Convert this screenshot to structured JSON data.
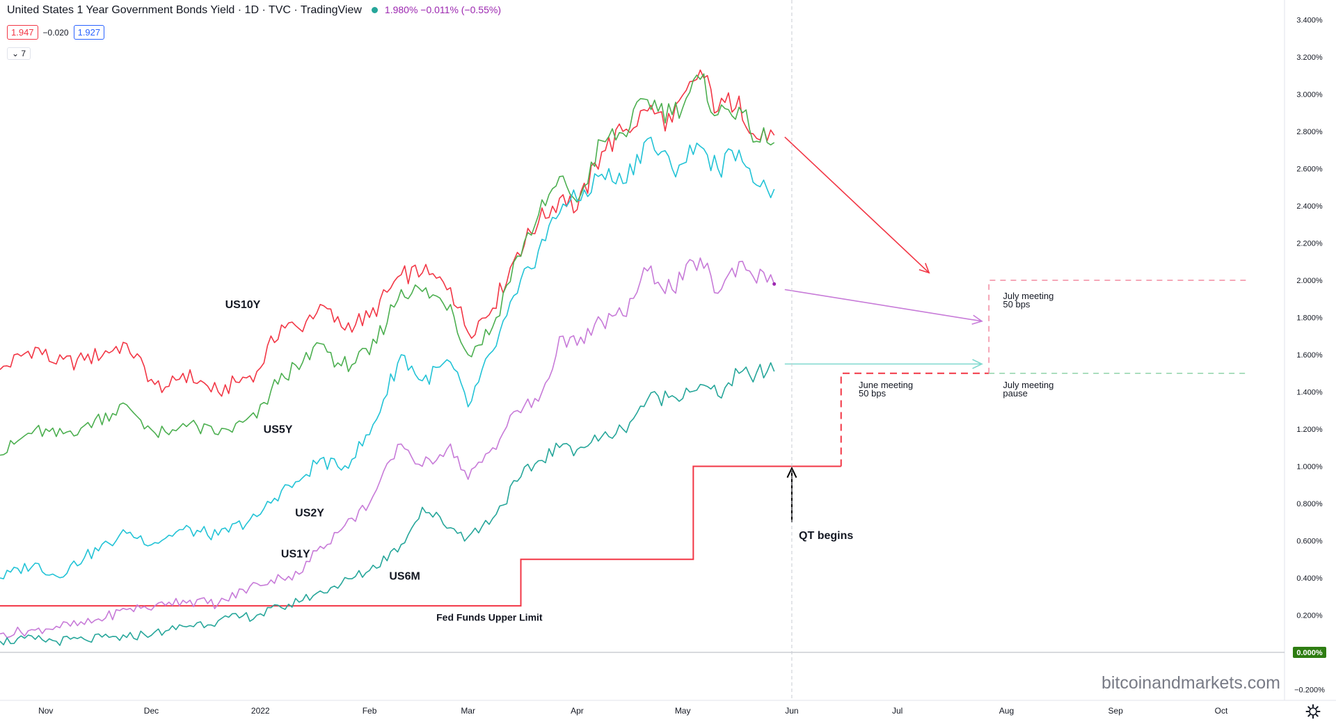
{
  "header": {
    "title": "United States 1 Year Government Bonds Yield · 1D · TVC · TradingView",
    "quote": "1.980% −0.011% (−0.55%)",
    "bid": "1.947",
    "spread": "−0.020",
    "ask": "1.927",
    "indicators_toggle": "7"
  },
  "watermark": "bitcoinandmarkets.com",
  "colors": {
    "US10Y": "#f23645",
    "US5Y": "#4caf50",
    "US2Y": "#22c3d6",
    "US1Y": "#c77ad8",
    "US6M": "#26a69a",
    "fed": "#f23645",
    "zero_badge": "#2e7d12"
  },
  "icons": {
    "settings": "gear-icon",
    "collapse": "chevron-down-icon"
  },
  "chart_data": {
    "type": "line",
    "x_axis_labels": [
      "Nov",
      "Dec",
      "2022",
      "Feb",
      "Mar",
      "Apr",
      "May",
      "Jun",
      "Jul",
      "Aug",
      "Sep",
      "Oct"
    ],
    "y_axis_labels": [
      "3.400%",
      "3.200%",
      "3.000%",
      "2.800%",
      "2.600%",
      "2.400%",
      "2.200%",
      "2.000%",
      "1.800%",
      "1.600%",
      "1.400%",
      "1.200%",
      "1.000%",
      "0.800%",
      "0.600%",
      "0.400%",
      "0.200%",
      "0.000%",
      "−0.200%"
    ],
    "ylim": [
      -0.2,
      3.4
    ],
    "y_unit": "%",
    "x_range": [
      "2021-10-19",
      "2022-10-19"
    ],
    "grid": false,
    "series": [
      {
        "name": "US10Y",
        "label_date": "2021-12-27",
        "label_y": 1.85,
        "points": [
          [
            "2021-10-19",
            1.52
          ],
          [
            "2021-10-29",
            1.64
          ],
          [
            "2021-11-04",
            1.55
          ],
          [
            "2021-11-12",
            1.57
          ],
          [
            "2021-11-24",
            1.66
          ],
          [
            "2021-12-02",
            1.44
          ],
          [
            "2021-12-06",
            1.43
          ],
          [
            "2021-12-10",
            1.5
          ],
          [
            "2021-12-20",
            1.4
          ],
          [
            "2021-12-31",
            1.51
          ],
          [
            "2022-01-07",
            1.76
          ],
          [
            "2022-01-12",
            1.74
          ],
          [
            "2022-01-18",
            1.87
          ],
          [
            "2022-01-24",
            1.75
          ],
          [
            "2022-02-01",
            1.8
          ],
          [
            "2022-02-10",
            2.03
          ],
          [
            "2022-02-16",
            2.04
          ],
          [
            "2022-02-24",
            1.96
          ],
          [
            "2022-03-01",
            1.72
          ],
          [
            "2022-03-08",
            1.85
          ],
          [
            "2022-03-15",
            2.15
          ],
          [
            "2022-03-21",
            2.31
          ],
          [
            "2022-03-28",
            2.46
          ],
          [
            "2022-04-01",
            2.38
          ],
          [
            "2022-04-08",
            2.69
          ],
          [
            "2022-04-14",
            2.8
          ],
          [
            "2022-04-21",
            2.91
          ],
          [
            "2022-04-28",
            2.85
          ],
          [
            "2022-05-06",
            3.13
          ],
          [
            "2022-05-11",
            2.91
          ],
          [
            "2022-05-17",
            2.99
          ],
          [
            "2022-05-20",
            2.79
          ],
          [
            "2022-05-25",
            2.75
          ],
          [
            "2022-05-27",
            2.78
          ]
        ]
      },
      {
        "name": "US5Y",
        "label_date": "2022-01-06",
        "label_y": 1.18,
        "points": [
          [
            "2021-10-19",
            1.06
          ],
          [
            "2021-10-29",
            1.2
          ],
          [
            "2021-11-04",
            1.16
          ],
          [
            "2021-11-12",
            1.22
          ],
          [
            "2021-11-24",
            1.33
          ],
          [
            "2021-12-02",
            1.18
          ],
          [
            "2021-12-06",
            1.17
          ],
          [
            "2021-12-10",
            1.23
          ],
          [
            "2021-12-20",
            1.17
          ],
          [
            "2021-12-31",
            1.26
          ],
          [
            "2022-01-07",
            1.5
          ],
          [
            "2022-01-12",
            1.52
          ],
          [
            "2022-01-18",
            1.66
          ],
          [
            "2022-01-24",
            1.54
          ],
          [
            "2022-02-01",
            1.6
          ],
          [
            "2022-02-10",
            1.95
          ],
          [
            "2022-02-16",
            1.94
          ],
          [
            "2022-02-24",
            1.87
          ],
          [
            "2022-03-01",
            1.6
          ],
          [
            "2022-03-08",
            1.75
          ],
          [
            "2022-03-15",
            2.13
          ],
          [
            "2022-03-21",
            2.35
          ],
          [
            "2022-03-28",
            2.56
          ],
          [
            "2022-04-01",
            2.42
          ],
          [
            "2022-04-08",
            2.75
          ],
          [
            "2022-04-14",
            2.79
          ],
          [
            "2022-04-21",
            2.97
          ],
          [
            "2022-04-28",
            2.89
          ],
          [
            "2022-05-06",
            3.08
          ],
          [
            "2022-05-11",
            2.89
          ],
          [
            "2022-05-17",
            2.93
          ],
          [
            "2022-05-20",
            2.81
          ],
          [
            "2022-05-25",
            2.74
          ],
          [
            "2022-05-27",
            2.74
          ]
        ]
      },
      {
        "name": "US2Y",
        "label_date": "2022-01-15",
        "label_y": 0.73,
        "points": [
          [
            "2021-10-19",
            0.4
          ],
          [
            "2021-10-29",
            0.48
          ],
          [
            "2021-11-04",
            0.41
          ],
          [
            "2021-11-12",
            0.51
          ],
          [
            "2021-11-24",
            0.64
          ],
          [
            "2021-12-02",
            0.59
          ],
          [
            "2021-12-06",
            0.63
          ],
          [
            "2021-12-10",
            0.66
          ],
          [
            "2021-12-20",
            0.63
          ],
          [
            "2021-12-31",
            0.73
          ],
          [
            "2022-01-07",
            0.87
          ],
          [
            "2022-01-12",
            0.92
          ],
          [
            "2022-01-18",
            1.04
          ],
          [
            "2022-01-24",
            0.98
          ],
          [
            "2022-02-01",
            1.17
          ],
          [
            "2022-02-10",
            1.6
          ],
          [
            "2022-02-16",
            1.46
          ],
          [
            "2022-02-24",
            1.56
          ],
          [
            "2022-03-01",
            1.32
          ],
          [
            "2022-03-08",
            1.62
          ],
          [
            "2022-03-15",
            1.93
          ],
          [
            "2022-03-21",
            2.16
          ],
          [
            "2022-03-28",
            2.41
          ],
          [
            "2022-04-01",
            2.43
          ],
          [
            "2022-04-08",
            2.57
          ],
          [
            "2022-04-14",
            2.52
          ],
          [
            "2022-04-21",
            2.76
          ],
          [
            "2022-04-28",
            2.6
          ],
          [
            "2022-05-06",
            2.72
          ],
          [
            "2022-05-11",
            2.6
          ],
          [
            "2022-05-17",
            2.7
          ],
          [
            "2022-05-20",
            2.6
          ],
          [
            "2022-05-25",
            2.49
          ],
          [
            "2022-05-27",
            2.49
          ]
        ]
      },
      {
        "name": "US1Y",
        "label_date": "2022-01-11",
        "label_y": 0.51,
        "points": [
          [
            "2021-10-19",
            0.1
          ],
          [
            "2021-10-29",
            0.12
          ],
          [
            "2021-11-04",
            0.14
          ],
          [
            "2021-11-12",
            0.15
          ],
          [
            "2021-11-24",
            0.23
          ],
          [
            "2021-12-02",
            0.25
          ],
          [
            "2021-12-06",
            0.27
          ],
          [
            "2021-12-10",
            0.28
          ],
          [
            "2021-12-20",
            0.26
          ],
          [
            "2021-12-31",
            0.37
          ],
          [
            "2022-01-07",
            0.4
          ],
          [
            "2022-01-12",
            0.42
          ],
          [
            "2022-01-18",
            0.57
          ],
          [
            "2022-01-24",
            0.66
          ],
          [
            "2022-02-01",
            0.8
          ],
          [
            "2022-02-10",
            1.12
          ],
          [
            "2022-02-16",
            1.0
          ],
          [
            "2022-02-24",
            1.12
          ],
          [
            "2022-03-01",
            0.93
          ],
          [
            "2022-03-08",
            1.1
          ],
          [
            "2022-03-15",
            1.3
          ],
          [
            "2022-03-21",
            1.35
          ],
          [
            "2022-03-28",
            1.7
          ],
          [
            "2022-04-01",
            1.65
          ],
          [
            "2022-04-08",
            1.78
          ],
          [
            "2022-04-14",
            1.81
          ],
          [
            "2022-04-21",
            2.05
          ],
          [
            "2022-04-28",
            1.95
          ],
          [
            "2022-05-06",
            2.12
          ],
          [
            "2022-05-11",
            1.93
          ],
          [
            "2022-05-17",
            2.1
          ],
          [
            "2022-05-20",
            2.05
          ],
          [
            "2022-05-25",
            1.99
          ],
          [
            "2022-05-27",
            1.98
          ]
        ]
      },
      {
        "name": "US6M",
        "label_date": "2022-02-11",
        "label_y": 0.39,
        "points": [
          [
            "2021-10-19",
            0.06
          ],
          [
            "2021-10-29",
            0.07
          ],
          [
            "2021-11-04",
            0.06
          ],
          [
            "2021-11-12",
            0.07
          ],
          [
            "2021-11-24",
            0.08
          ],
          [
            "2021-12-02",
            0.11
          ],
          [
            "2021-12-06",
            0.12
          ],
          [
            "2021-12-10",
            0.14
          ],
          [
            "2021-12-20",
            0.17
          ],
          [
            "2021-12-31",
            0.2
          ],
          [
            "2022-01-07",
            0.24
          ],
          [
            "2022-01-12",
            0.27
          ],
          [
            "2022-01-18",
            0.33
          ],
          [
            "2022-01-24",
            0.37
          ],
          [
            "2022-02-01",
            0.44
          ],
          [
            "2022-02-10",
            0.58
          ],
          [
            "2022-02-16",
            0.78
          ],
          [
            "2022-02-24",
            0.67
          ],
          [
            "2022-03-01",
            0.62
          ],
          [
            "2022-03-08",
            0.72
          ],
          [
            "2022-03-15",
            0.92
          ],
          [
            "2022-03-21",
            1.03
          ],
          [
            "2022-03-28",
            1.12
          ],
          [
            "2022-04-01",
            1.09
          ],
          [
            "2022-04-08",
            1.16
          ],
          [
            "2022-04-14",
            1.2
          ],
          [
            "2022-04-21",
            1.36
          ],
          [
            "2022-04-28",
            1.38
          ],
          [
            "2022-05-06",
            1.44
          ],
          [
            "2022-05-11",
            1.38
          ],
          [
            "2022-05-17",
            1.5
          ],
          [
            "2022-05-20",
            1.49
          ],
          [
            "2022-05-25",
            1.51
          ],
          [
            "2022-05-27",
            1.51
          ]
        ]
      }
    ],
    "fed_funds": {
      "label": "Fed Funds Upper Limit",
      "label_date": "2022-02-20",
      "label_y": 0.17,
      "steps": [
        [
          "2021-10-19",
          0.25
        ],
        [
          "2022-03-16",
          0.25
        ],
        [
          "2022-03-16",
          0.5
        ],
        [
          "2022-05-04",
          0.5
        ],
        [
          "2022-05-04",
          1.0
        ],
        [
          "2022-06-15",
          1.0
        ]
      ],
      "projection": [
        [
          "2022-06-15",
          1.0
        ],
        [
          "2022-06-15",
          1.5
        ],
        [
          "2022-07-27",
          1.5
        ],
        [
          "2022-07-27",
          2.0
        ],
        [
          "2022-10-08",
          2.0
        ]
      ],
      "pause_projection": [
        [
          "2022-07-27",
          1.5
        ],
        [
          "2022-10-08",
          1.5
        ]
      ]
    },
    "annotations": [
      {
        "id": "june",
        "lines": [
          "June meeting",
          "50 bps"
        ],
        "date": "2022-06-20",
        "y": 1.42
      },
      {
        "id": "july",
        "lines": [
          "July meeting",
          "50 bps"
        ],
        "date": "2022-07-31",
        "y": 1.9
      },
      {
        "id": "pause",
        "lines": [
          "July meeting",
          "pause"
        ],
        "date": "2022-07-31",
        "y": 1.42
      },
      {
        "id": "qt",
        "lines": [
          "QT begins"
        ],
        "date": "2022-06-03",
        "y": 0.61
      }
    ],
    "arrows": [
      {
        "color": "#f23645",
        "from": [
          "2022-05-30",
          2.77
        ],
        "to": [
          "2022-07-10",
          2.04
        ]
      },
      {
        "color": "#c77ad8",
        "from": [
          "2022-05-30",
          1.95
        ],
        "to": [
          "2022-07-25",
          1.78
        ]
      },
      {
        "color": "#7fd9cf",
        "from": [
          "2022-05-30",
          1.55
        ],
        "to": [
          "2022-07-25",
          1.55
        ]
      },
      {
        "color": "#000000",
        "from": [
          "2022-06-01",
          0.7
        ],
        "to": [
          "2022-06-01",
          0.99
        ]
      }
    ],
    "vline_date": "2022-06-01"
  }
}
